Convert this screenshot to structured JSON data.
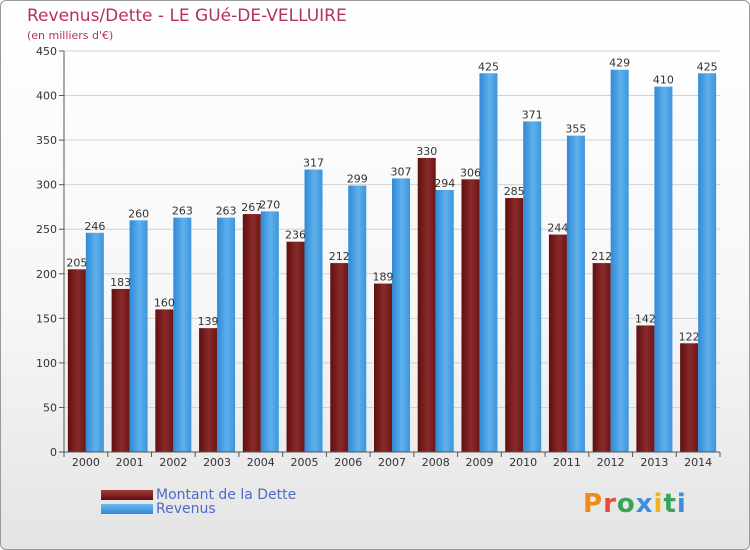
{
  "title": "Revenus/Dette - LE GUé-DE-VELLUIRE",
  "subtitle": "(en milliers d'€)",
  "logo": {
    "text": "Proxiti"
  },
  "colors": {
    "dette": "#7a1c1c",
    "revenus": "#4a9fe0",
    "title": "#b5305f",
    "legend_text": "#4c6cc6"
  },
  "chart_data": {
    "type": "bar",
    "categories": [
      "2000",
      "2001",
      "2002",
      "2003",
      "2004",
      "2005",
      "2006",
      "2007",
      "2008",
      "2009",
      "2010",
      "2011",
      "2012",
      "2013",
      "2014"
    ],
    "series": [
      {
        "name": "Montant de la Dette",
        "values": [
          205,
          183,
          160,
          139,
          267,
          236,
          212,
          189,
          330,
          306,
          285,
          244,
          212,
          142,
          122
        ]
      },
      {
        "name": "Revenus",
        "values": [
          246,
          260,
          263,
          263,
          270,
          317,
          299,
          307,
          294,
          425,
          371,
          355,
          429,
          410,
          425
        ]
      }
    ],
    "ylim": [
      0,
      450
    ],
    "yticks": [
      0,
      50,
      100,
      150,
      200,
      250,
      300,
      350,
      400,
      450
    ],
    "grid": true,
    "legend": "bottom-left"
  }
}
